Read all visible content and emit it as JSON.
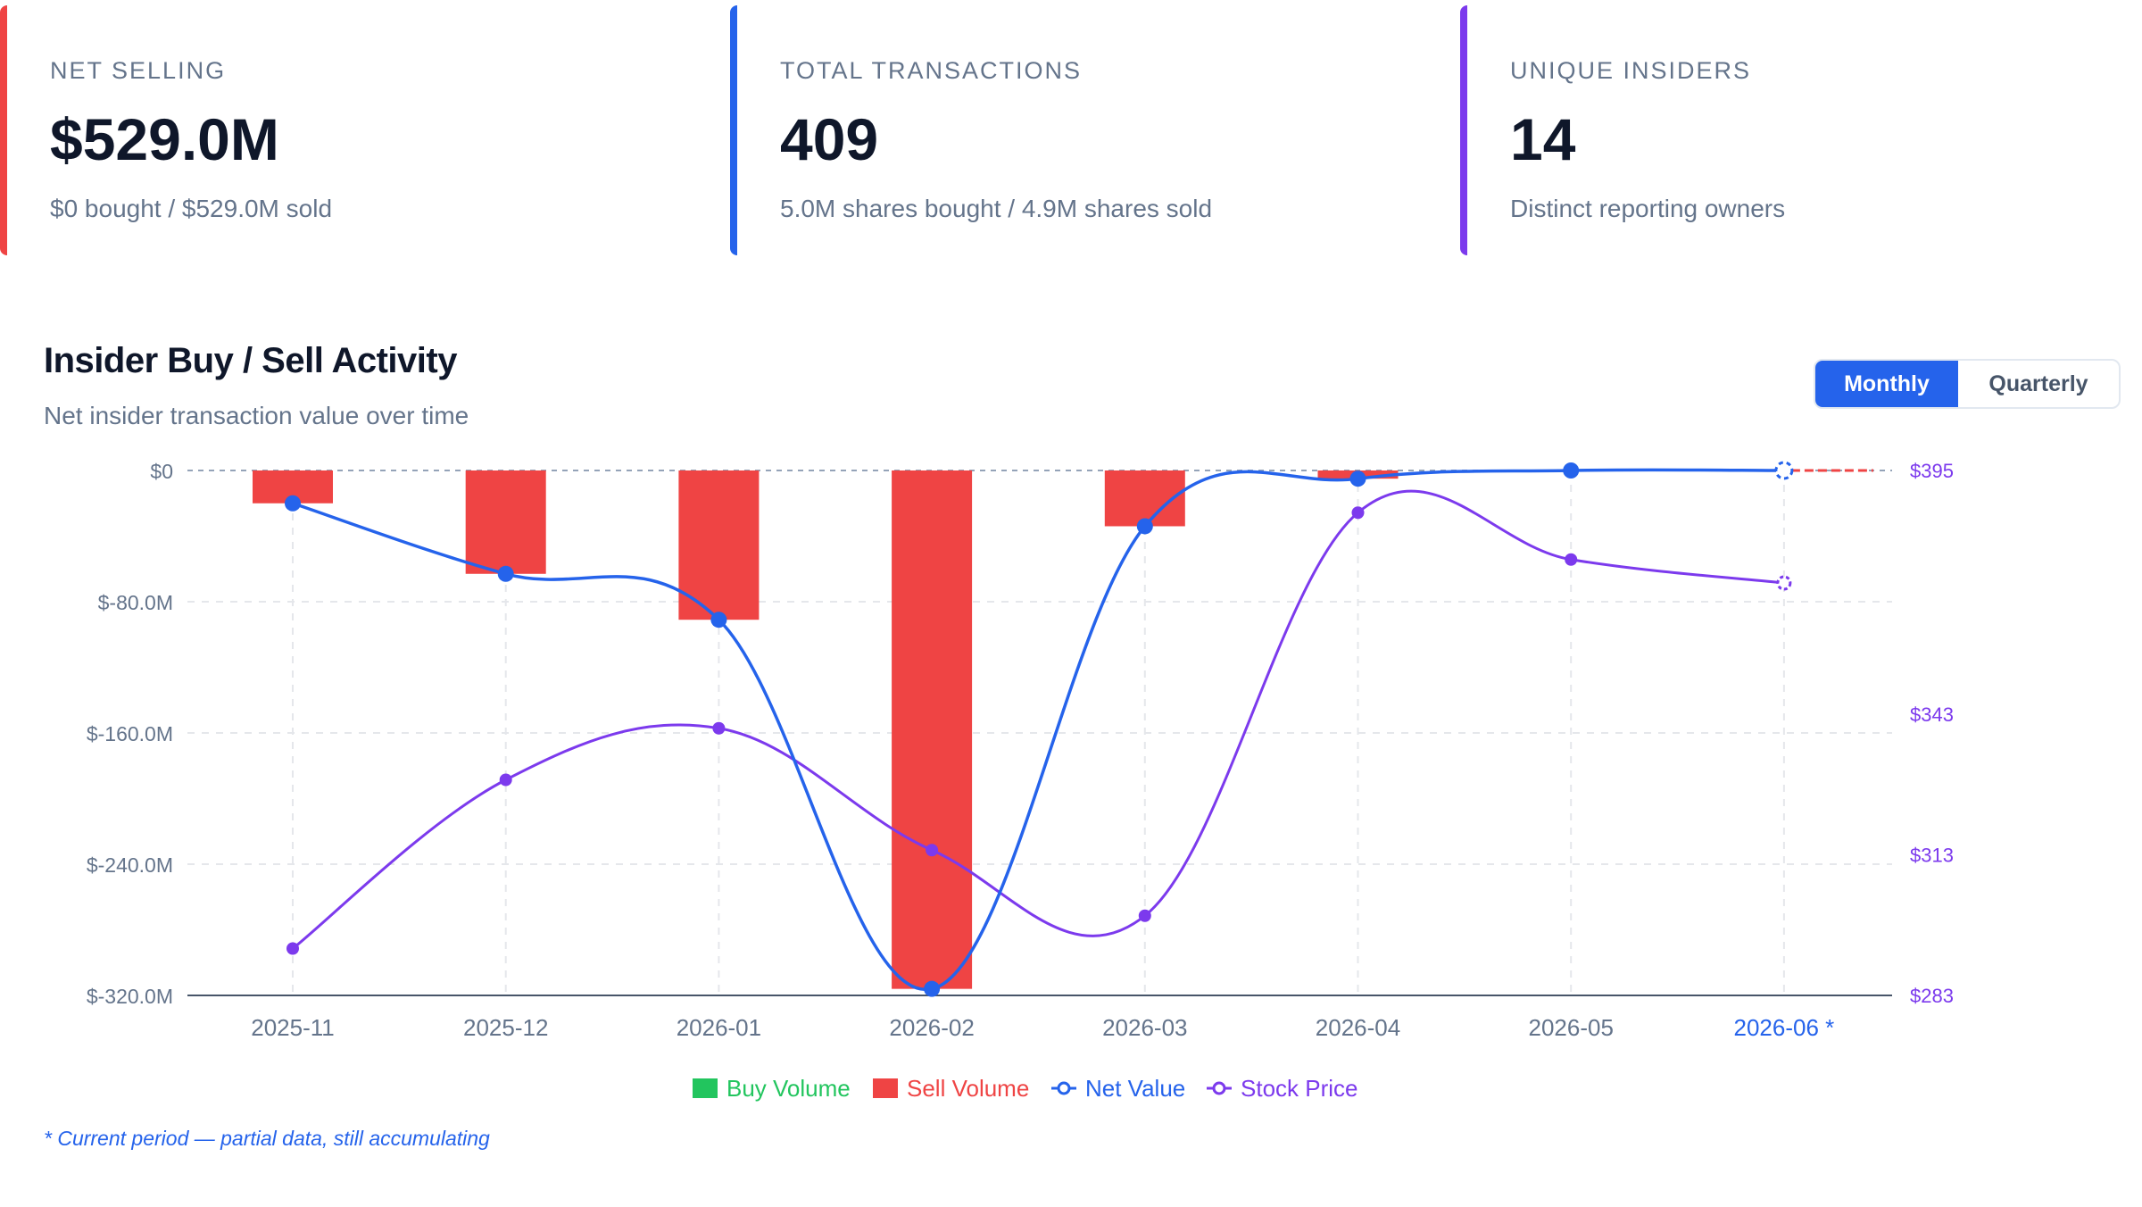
{
  "stats": [
    {
      "label": "NET SELLING",
      "value": "$529.0M",
      "sub": "$0 bought / $529.0M sold",
      "color": "#ef4444"
    },
    {
      "label": "TOTAL TRANSACTIONS",
      "value": "409",
      "sub": "5.0M shares bought / 4.9M shares sold",
      "color": "#2563eb"
    },
    {
      "label": "UNIQUE INSIDERS",
      "value": "14",
      "sub": "Distinct reporting owners",
      "color": "#7c3aed"
    }
  ],
  "chart_header": {
    "title": "Insider Buy / Sell Activity",
    "subtitle": "Net insider transaction value over time"
  },
  "period_toggle": {
    "options": [
      "Monthly",
      "Quarterly"
    ],
    "selected": "Monthly"
  },
  "footnote": "* Current period — partial data, still accumulating",
  "colors": {
    "buy": "#22c55e",
    "sell": "#ef4444",
    "net": "#2563eb",
    "price": "#7c3aed"
  },
  "chart_data": {
    "type": "bar",
    "categories": [
      "2025-11",
      "2025-12",
      "2026-01",
      "2026-02",
      "2026-03",
      "2026-04",
      "2026-05",
      "2026-06 *"
    ],
    "current_period_index": 7,
    "y_left": {
      "ticks": [
        "$0",
        "$-80.0M",
        "$-160.0M",
        "$-240.0M",
        "$-320.0M"
      ],
      "range": [
        -320,
        0
      ],
      "unit": "$M"
    },
    "y_right": {
      "ticks": [
        "$395",
        "$343",
        "$313",
        "$283"
      ],
      "tick_values": [
        395,
        343,
        313,
        283
      ],
      "range": [
        283,
        395
      ]
    },
    "series": [
      {
        "name": "Buy Volume",
        "type": "bar",
        "color": "#22c55e",
        "values": [
          0,
          0,
          0,
          0,
          0,
          0,
          0,
          0
        ]
      },
      {
        "name": "Sell Volume",
        "type": "bar",
        "color": "#ef4444",
        "values": [
          -20,
          -63,
          -91,
          -316,
          -34,
          -5,
          0,
          0
        ]
      },
      {
        "name": "Net Value",
        "type": "line",
        "color": "#2563eb",
        "values": [
          -20,
          -63,
          -91,
          -316,
          -34,
          -5,
          0,
          0
        ]
      },
      {
        "name": "Stock Price",
        "type": "line",
        "color": "#7c3aed",
        "values": [
          293,
          329,
          340,
          314,
          300,
          386,
          376,
          371
        ]
      }
    ],
    "legend": [
      "Buy Volume",
      "Sell Volume",
      "Net Value",
      "Stock Price"
    ],
    "legend_position": "bottom-center",
    "grid": true
  }
}
